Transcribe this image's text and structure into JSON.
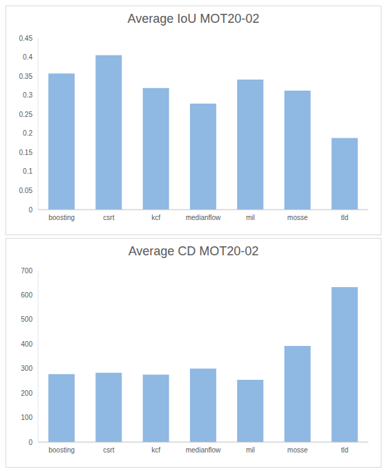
{
  "chart_data": [
    {
      "type": "bar",
      "title": "Average IoU MOT20-02",
      "categories": [
        "boosting",
        "csrt",
        "kcf",
        "medianflow",
        "mil",
        "mosse",
        "tld"
      ],
      "values": [
        0.357,
        0.405,
        0.319,
        0.278,
        0.341,
        0.312,
        0.188
      ],
      "color": "#8fb8e3",
      "ylim": [
        0,
        0.45
      ],
      "yticks": [
        0,
        0.05,
        0.1,
        0.15,
        0.2,
        0.25,
        0.3,
        0.35,
        0.4,
        0.45
      ],
      "grid": false
    },
    {
      "type": "bar",
      "title": "Average CD MOT20-02",
      "categories": [
        "boosting",
        "csrt",
        "kcf",
        "medianflow",
        "mil",
        "mosse",
        "tld"
      ],
      "values": [
        277,
        283,
        275,
        300,
        254,
        392,
        632
      ],
      "color": "#8fb8e3",
      "ylim": [
        0,
        700
      ],
      "yticks": [
        0,
        100,
        200,
        300,
        400,
        500,
        600,
        700
      ],
      "grid": false
    }
  ]
}
